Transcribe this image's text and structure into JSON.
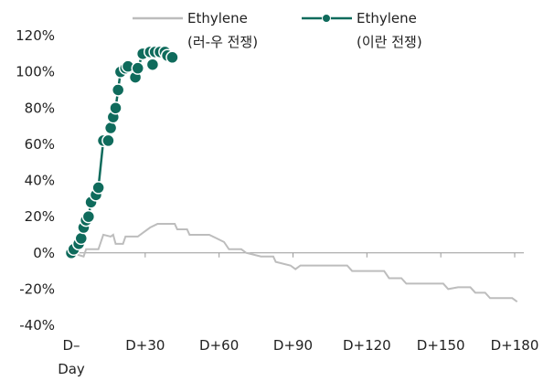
{
  "chart_data": {
    "type": "line",
    "xlim": [
      0,
      180
    ],
    "ylim": [
      -40,
      120
    ],
    "xticks": [
      {
        "value": 0,
        "label": "D–\nDay"
      },
      {
        "value": 30,
        "label": "D+30"
      },
      {
        "value": 60,
        "label": "D+60"
      },
      {
        "value": 90,
        "label": "D+90"
      },
      {
        "value": 120,
        "label": "D+120"
      },
      {
        "value": 150,
        "label": "D+150"
      },
      {
        "value": 180,
        "label": "D+180"
      }
    ],
    "yticks": [
      {
        "value": -40,
        "label": "-40%"
      },
      {
        "value": -20,
        "label": "-20%"
      },
      {
        "value": 0,
        "label": "0%"
      },
      {
        "value": 20,
        "label": "20%"
      },
      {
        "value": 40,
        "label": "40%"
      },
      {
        "value": 60,
        "label": "60%"
      },
      {
        "value": 80,
        "label": "80%"
      },
      {
        "value": 100,
        "label": "100%"
      },
      {
        "value": 120,
        "label": "120%"
      }
    ],
    "series": [
      {
        "name": "Ethylene\n(러-우 전쟁)",
        "color": "#bdbdbd",
        "markers": false,
        "x": [
          0,
          5,
          6,
          11,
          13,
          16,
          17,
          18,
          21,
          22,
          27,
          29,
          32,
          35,
          42,
          43,
          47,
          48,
          56,
          59,
          62,
          64,
          69,
          71,
          77,
          82,
          83,
          89,
          91,
          93,
          112,
          114,
          127,
          129,
          134,
          136,
          151,
          153,
          157,
          162,
          164,
          168,
          170,
          179,
          181
        ],
        "values": [
          0,
          -2,
          2,
          2,
          10,
          9,
          10,
          5,
          5,
          9,
          9,
          11,
          14,
          16,
          16,
          13,
          13,
          10,
          10,
          8,
          6,
          2,
          2,
          0,
          -2,
          -2,
          -5,
          -7,
          -9,
          -7,
          -7,
          -10,
          -10,
          -14,
          -14,
          -17,
          -17,
          -20,
          -19,
          -19,
          -22,
          -22,
          -25,
          -25,
          -27
        ]
      },
      {
        "name": "Ethylene\n(이란 전쟁)",
        "color": "#0f6b5c",
        "markers": true,
        "x": [
          0,
          1,
          3,
          4,
          5,
          6,
          7,
          8,
          10,
          11,
          13,
          15,
          16,
          17,
          18,
          19,
          20,
          22,
          23,
          26,
          27,
          29,
          32,
          33,
          34,
          36,
          38,
          39,
          41
        ],
        "values": [
          0,
          2,
          5,
          8,
          14,
          18,
          20,
          28,
          32,
          36,
          62,
          62,
          69,
          75,
          80,
          90,
          100,
          102,
          103,
          97,
          102,
          110,
          111,
          104,
          111,
          111,
          111,
          109,
          108
        ]
      }
    ]
  }
}
